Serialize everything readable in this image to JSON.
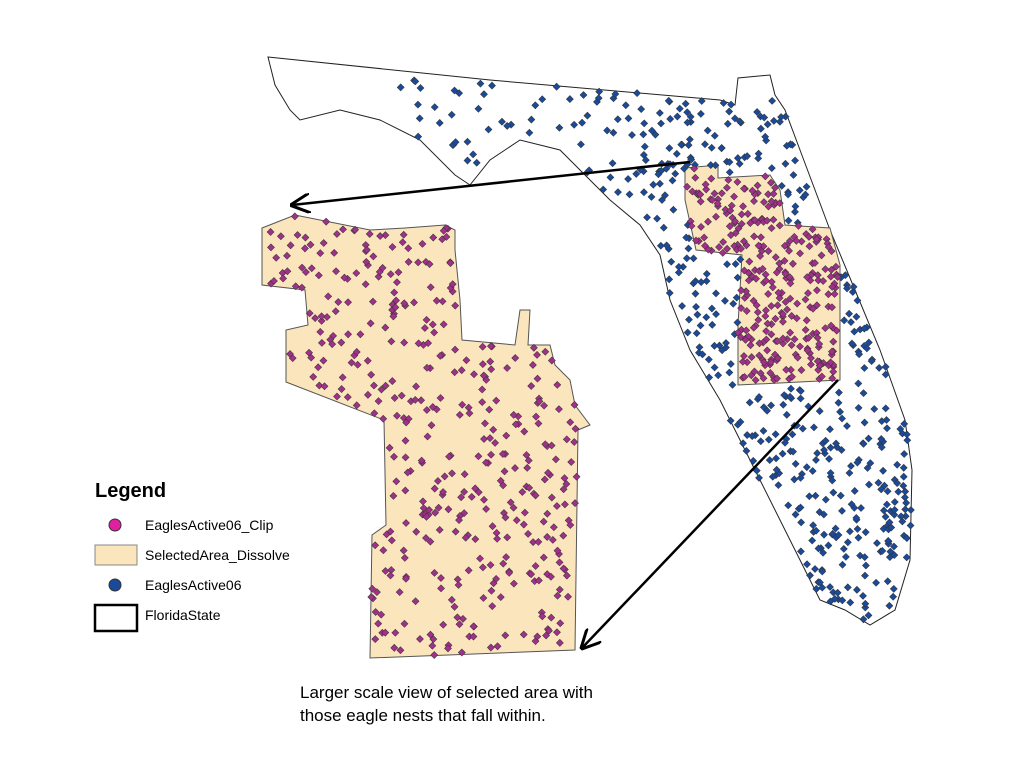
{
  "legend": {
    "title": "Legend",
    "items": [
      "EaglesActive06_Clip",
      "SelectedArea_Dissolve",
      "EaglesActive06",
      "FloridaState"
    ]
  },
  "caption": [
    "Larger scale view of selected area with",
    "those eagle nests that fall within."
  ]
}
